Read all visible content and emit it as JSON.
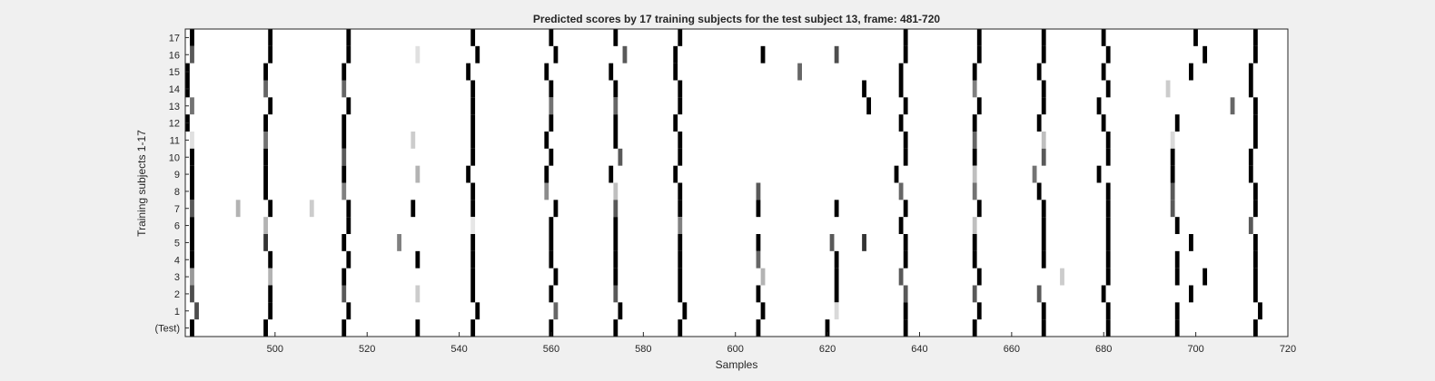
{
  "chart_data": {
    "type": "heatmap",
    "title": "Predicted scores by 17 training subjects for the test subject 13, frame: 481-720",
    "xlabel": "Samples",
    "ylabel": "Training subjects 1-17",
    "xlim": [
      481,
      720
    ],
    "x_ticks": [
      500,
      520,
      540,
      560,
      580,
      600,
      620,
      640,
      660,
      680,
      700,
      720
    ],
    "x_tick_labels": [
      "500",
      "520",
      "540",
      "560",
      "580",
      "600",
      "620",
      "640",
      "660",
      "680",
      "700",
      "720"
    ],
    "rows": [
      "(Test)",
      "1",
      "2",
      "3",
      "4",
      "5",
      "6",
      "7",
      "8",
      "9",
      "10",
      "11",
      "12",
      "13",
      "14",
      "15",
      "16",
      "17"
    ],
    "colormap": "gray (0 = white, 1 = black)",
    "value_range": [
      0,
      1
    ],
    "grid": false,
    "cells": [
      {
        "row": "17",
        "marks": [
          [
            482,
            1.0
          ],
          [
            499,
            1.0
          ],
          [
            516,
            1.0
          ],
          [
            543,
            1.0
          ],
          [
            560,
            1.0
          ],
          [
            574,
            1.0
          ],
          [
            588,
            1.0
          ],
          [
            637,
            1.0
          ],
          [
            653,
            1.0
          ],
          [
            667,
            1.0
          ],
          [
            680,
            1.0
          ],
          [
            700,
            1.0
          ],
          [
            713,
            1.0
          ]
        ]
      },
      {
        "row": "16",
        "marks": [
          [
            482,
            0.65
          ],
          [
            499,
            1.0
          ],
          [
            516,
            1.0
          ],
          [
            531,
            0.12
          ],
          [
            544,
            1.0
          ],
          [
            561,
            1.0
          ],
          [
            576,
            0.65
          ],
          [
            587,
            1.0
          ],
          [
            606,
            1.0
          ],
          [
            622,
            0.7
          ],
          [
            637,
            1.0
          ],
          [
            653,
            1.0
          ],
          [
            667,
            1.0
          ],
          [
            681,
            1.0
          ],
          [
            702,
            1.0
          ],
          [
            713,
            1.0
          ]
        ]
      },
      {
        "row": "15",
        "marks": [
          [
            481,
            1.0
          ],
          [
            498,
            1.0
          ],
          [
            515,
            1.0
          ],
          [
            542,
            1.0
          ],
          [
            559,
            1.0
          ],
          [
            573,
            1.0
          ],
          [
            587,
            1.0
          ],
          [
            614,
            0.6
          ],
          [
            636,
            1.0
          ],
          [
            652,
            1.0
          ],
          [
            666,
            1.0
          ],
          [
            680,
            1.0
          ],
          [
            699,
            1.0
          ],
          [
            712,
            1.0
          ]
        ]
      },
      {
        "row": "14",
        "marks": [
          [
            481,
            1.0
          ],
          [
            498,
            0.6
          ],
          [
            515,
            0.6
          ],
          [
            543,
            1.0
          ],
          [
            560,
            1.0
          ],
          [
            574,
            1.0
          ],
          [
            588,
            1.0
          ],
          [
            628,
            1.0
          ],
          [
            636,
            1.0
          ],
          [
            652,
            0.5
          ],
          [
            667,
            1.0
          ],
          [
            681,
            1.0
          ],
          [
            694,
            0.2
          ],
          [
            712,
            1.0
          ]
        ]
      },
      {
        "row": "13",
        "marks": [
          [
            482,
            0.55
          ],
          [
            499,
            1.0
          ],
          [
            516,
            1.0
          ],
          [
            543,
            1.0
          ],
          [
            560,
            0.55
          ],
          [
            574,
            0.6
          ],
          [
            588,
            1.0
          ],
          [
            629,
            1.0
          ],
          [
            637,
            1.0
          ],
          [
            653,
            1.0
          ],
          [
            667,
            1.0
          ],
          [
            679,
            1.0
          ],
          [
            708,
            0.6
          ],
          [
            713,
            1.0
          ]
        ]
      },
      {
        "row": "12",
        "marks": [
          [
            481,
            1.0
          ],
          [
            498,
            1.0
          ],
          [
            515,
            1.0
          ],
          [
            543,
            1.0
          ],
          [
            560,
            1.0
          ],
          [
            574,
            1.0
          ],
          [
            587,
            1.0
          ],
          [
            636,
            1.0
          ],
          [
            652,
            1.0
          ],
          [
            666,
            1.0
          ],
          [
            680,
            1.0
          ],
          [
            696,
            1.0
          ],
          [
            713,
            1.0
          ]
        ]
      },
      {
        "row": "11",
        "marks": [
          [
            482,
            0.12
          ],
          [
            498,
            0.55
          ],
          [
            515,
            1.0
          ],
          [
            530,
            0.2
          ],
          [
            543,
            1.0
          ],
          [
            559,
            1.0
          ],
          [
            574,
            1.0
          ],
          [
            588,
            1.0
          ],
          [
            637,
            1.0
          ],
          [
            652,
            0.6
          ],
          [
            667,
            0.25
          ],
          [
            681,
            1.0
          ],
          [
            695,
            0.15
          ],
          [
            713,
            1.0
          ]
        ]
      },
      {
        "row": "10",
        "marks": [
          [
            482,
            1.0
          ],
          [
            498,
            1.0
          ],
          [
            515,
            0.65
          ],
          [
            543,
            1.0
          ],
          [
            560,
            1.0
          ],
          [
            575,
            0.65
          ],
          [
            588,
            1.0
          ],
          [
            637,
            1.0
          ],
          [
            652,
            1.0
          ],
          [
            667,
            0.65
          ],
          [
            681,
            1.0
          ],
          [
            695,
            1.0
          ],
          [
            712,
            1.0
          ]
        ]
      },
      {
        "row": "9",
        "marks": [
          [
            482,
            1.0
          ],
          [
            498,
            1.0
          ],
          [
            515,
            1.0
          ],
          [
            531,
            0.3
          ],
          [
            542,
            1.0
          ],
          [
            559,
            1.0
          ],
          [
            573,
            1.0
          ],
          [
            587,
            1.0
          ],
          [
            635,
            1.0
          ],
          [
            652,
            0.25
          ],
          [
            665,
            0.55
          ],
          [
            679,
            1.0
          ],
          [
            695,
            1.0
          ],
          [
            712,
            1.0
          ]
        ]
      },
      {
        "row": "8",
        "marks": [
          [
            482,
            1.0
          ],
          [
            498,
            1.0
          ],
          [
            515,
            0.5
          ],
          [
            543,
            1.0
          ],
          [
            559,
            0.45
          ],
          [
            574,
            0.25
          ],
          [
            588,
            1.0
          ],
          [
            605,
            0.65
          ],
          [
            636,
            0.6
          ],
          [
            652,
            0.55
          ],
          [
            666,
            1.0
          ],
          [
            681,
            1.0
          ],
          [
            695,
            0.65
          ],
          [
            713,
            1.0
          ]
        ]
      },
      {
        "row": "7",
        "marks": [
          [
            482,
            0.65
          ],
          [
            492,
            0.3
          ],
          [
            499,
            1.0
          ],
          [
            508,
            0.2
          ],
          [
            516,
            1.0
          ],
          [
            530,
            1.0
          ],
          [
            543,
            1.0
          ],
          [
            561,
            1.0
          ],
          [
            574,
            0.65
          ],
          [
            588,
            1.0
          ],
          [
            605,
            1.0
          ],
          [
            622,
            1.0
          ],
          [
            637,
            1.0
          ],
          [
            653,
            1.0
          ],
          [
            667,
            1.0
          ],
          [
            681,
            1.0
          ],
          [
            695,
            0.65
          ],
          [
            713,
            1.0
          ]
        ]
      },
      {
        "row": "6",
        "marks": [
          [
            482,
            1.0
          ],
          [
            498,
            0.3
          ],
          [
            516,
            1.0
          ],
          [
            543,
            0.1
          ],
          [
            560,
            1.0
          ],
          [
            574,
            1.0
          ],
          [
            588,
            0.5
          ],
          [
            636,
            1.0
          ],
          [
            652,
            0.25
          ],
          [
            667,
            1.0
          ],
          [
            681,
            1.0
          ],
          [
            696,
            1.0
          ],
          [
            712,
            0.65
          ]
        ]
      },
      {
        "row": "5",
        "marks": [
          [
            482,
            1.0
          ],
          [
            498,
            0.8
          ],
          [
            515,
            1.0
          ],
          [
            527,
            0.5
          ],
          [
            543,
            1.0
          ],
          [
            560,
            1.0
          ],
          [
            574,
            1.0
          ],
          [
            588,
            1.0
          ],
          [
            605,
            1.0
          ],
          [
            621,
            0.65
          ],
          [
            628,
            0.8
          ],
          [
            637,
            1.0
          ],
          [
            652,
            1.0
          ],
          [
            667,
            1.0
          ],
          [
            681,
            1.0
          ],
          [
            699,
            1.0
          ],
          [
            713,
            1.0
          ]
        ]
      },
      {
        "row": "4",
        "marks": [
          [
            482,
            1.0
          ],
          [
            499,
            1.0
          ],
          [
            516,
            1.0
          ],
          [
            531,
            1.0
          ],
          [
            543,
            1.0
          ],
          [
            560,
            1.0
          ],
          [
            574,
            1.0
          ],
          [
            588,
            1.0
          ],
          [
            605,
            0.6
          ],
          [
            622,
            1.0
          ],
          [
            637,
            1.0
          ],
          [
            652,
            1.0
          ],
          [
            667,
            1.0
          ],
          [
            681,
            1.0
          ],
          [
            696,
            1.0
          ],
          [
            713,
            1.0
          ]
        ]
      },
      {
        "row": "3",
        "marks": [
          [
            482,
            0.4
          ],
          [
            499,
            0.3
          ],
          [
            515,
            1.0
          ],
          [
            543,
            1.0
          ],
          [
            561,
            1.0
          ],
          [
            574,
            1.0
          ],
          [
            588,
            1.0
          ],
          [
            606,
            0.3
          ],
          [
            622,
            1.0
          ],
          [
            636,
            0.65
          ],
          [
            653,
            1.0
          ],
          [
            671,
            0.2
          ],
          [
            681,
            1.0
          ],
          [
            696,
            1.0
          ],
          [
            702,
            1.0
          ],
          [
            713,
            1.0
          ]
        ]
      },
      {
        "row": "2",
        "marks": [
          [
            482,
            0.7
          ],
          [
            499,
            1.0
          ],
          [
            515,
            0.65
          ],
          [
            531,
            0.2
          ],
          [
            543,
            1.0
          ],
          [
            560,
            1.0
          ],
          [
            574,
            0.65
          ],
          [
            588,
            1.0
          ],
          [
            605,
            1.0
          ],
          [
            622,
            1.0
          ],
          [
            637,
            0.65
          ],
          [
            652,
            0.65
          ],
          [
            666,
            0.65
          ],
          [
            680,
            1.0
          ],
          [
            699,
            1.0
          ],
          [
            713,
            1.0
          ]
        ]
      },
      {
        "row": "1",
        "marks": [
          [
            483,
            0.7
          ],
          [
            499,
            1.0
          ],
          [
            516,
            1.0
          ],
          [
            544,
            1.0
          ],
          [
            561,
            0.6
          ],
          [
            575,
            1.0
          ],
          [
            589,
            1.0
          ],
          [
            606,
            1.0
          ],
          [
            622,
            0.15
          ],
          [
            637,
            1.0
          ],
          [
            653,
            1.0
          ],
          [
            667,
            1.0
          ],
          [
            681,
            1.0
          ],
          [
            696,
            1.0
          ],
          [
            714,
            1.0
          ]
        ]
      },
      {
        "row": "(Test)",
        "marks": [
          [
            482,
            1.0
          ],
          [
            498,
            1.0
          ],
          [
            515,
            1.0
          ],
          [
            531,
            1.0
          ],
          [
            543,
            1.0
          ],
          [
            560,
            1.0
          ],
          [
            574,
            1.0
          ],
          [
            588,
            1.0
          ],
          [
            605,
            1.0
          ],
          [
            620,
            1.0
          ],
          [
            637,
            1.0
          ],
          [
            652,
            1.0
          ],
          [
            667,
            1.0
          ],
          [
            681,
            1.0
          ],
          [
            696,
            1.0
          ],
          [
            713,
            1.0
          ]
        ]
      }
    ]
  }
}
